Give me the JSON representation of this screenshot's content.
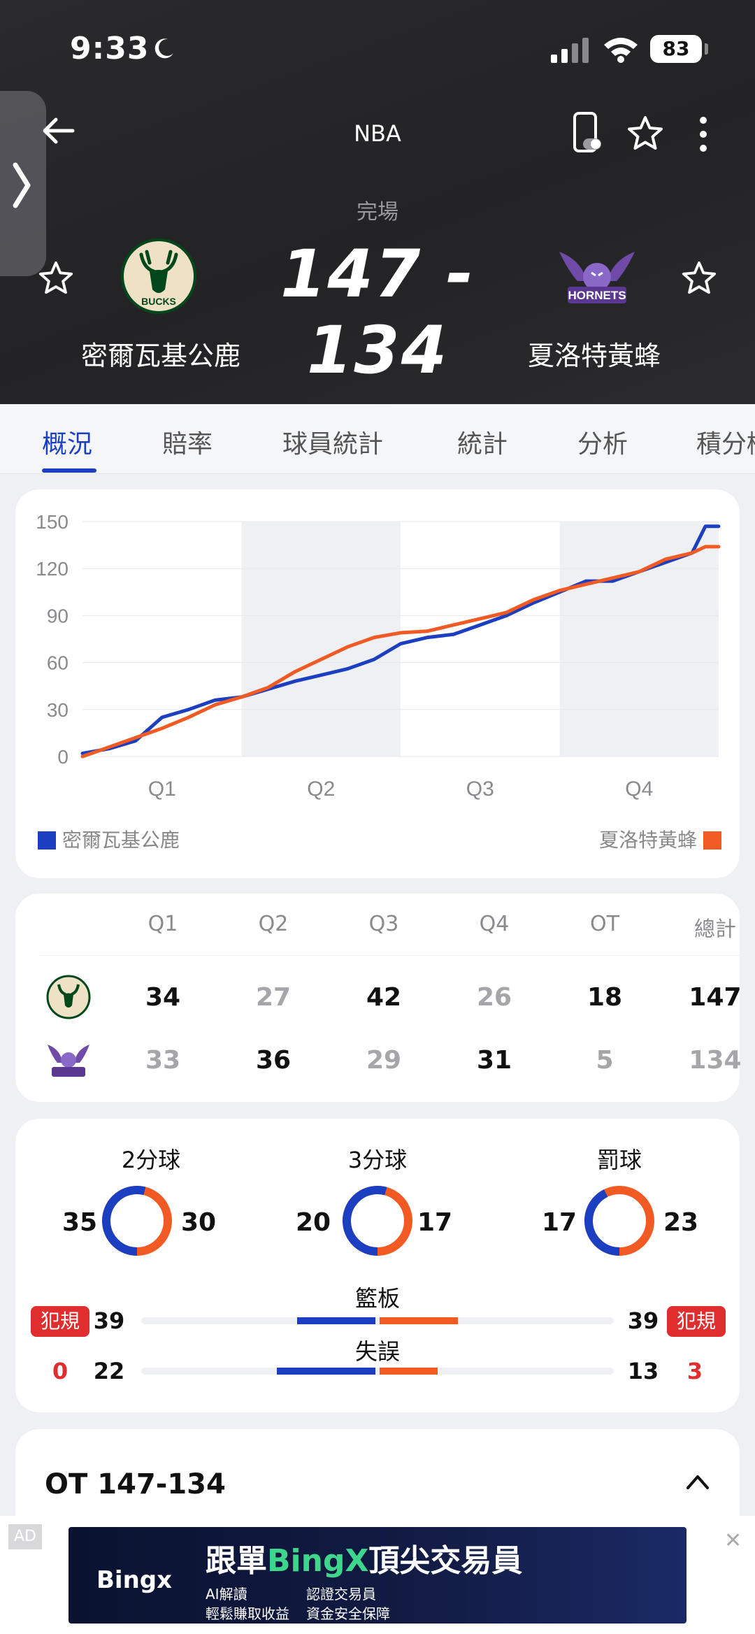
{
  "status_bar": {
    "time": "9:33",
    "battery": "83"
  },
  "header": {
    "league": "NBA",
    "game_status": "完場",
    "score": "147 - 134",
    "home_team": "密爾瓦基公鹿",
    "away_team": "夏洛特黃蜂",
    "home_logo_text": "BUCKS",
    "away_logo_text": "HORNETS"
  },
  "tabs": [
    "概況",
    "賠率",
    "球員統計",
    "統計",
    "分析",
    "積分榜"
  ],
  "chart_data": {
    "type": "line",
    "title": "",
    "xlabel": "",
    "ylabel": "",
    "categories": [
      "Q1",
      "Q2",
      "Q3",
      "Q4"
    ],
    "y_ticks": [
      "150",
      "120",
      "90",
      "60",
      "30",
      "0"
    ],
    "ylim": [
      0,
      150
    ],
    "xlim": [
      0,
      48
    ],
    "grid": true,
    "legend_placement": "bottom",
    "colors": {
      "home": "#1b3fc0",
      "away": "#f15a22"
    },
    "series": [
      {
        "name": "密爾瓦基公鹿",
        "color": "#1b3fc0",
        "x": [
          0,
          2,
          4,
          6,
          8,
          10,
          12,
          14,
          16,
          18,
          20,
          22,
          24,
          26,
          28,
          30,
          32,
          34,
          36,
          38,
          40,
          42,
          44,
          46,
          47,
          48
        ],
        "y": [
          2,
          5,
          10,
          25,
          30,
          36,
          38,
          43,
          48,
          52,
          56,
          62,
          72,
          76,
          78,
          84,
          90,
          98,
          105,
          112,
          112,
          118,
          124,
          130,
          147,
          147
        ]
      },
      {
        "name": "夏洛特黃蜂",
        "color": "#f15a22",
        "x": [
          0,
          2,
          4,
          6,
          8,
          10,
          12,
          14,
          16,
          18,
          20,
          22,
          24,
          26,
          28,
          30,
          32,
          34,
          36,
          38,
          40,
          42,
          44,
          46,
          47,
          48
        ],
        "y": [
          0,
          6,
          12,
          18,
          25,
          33,
          38,
          44,
          54,
          62,
          70,
          76,
          79,
          80,
          84,
          88,
          92,
          100,
          106,
          110,
          114,
          118,
          126,
          130,
          134,
          134
        ]
      }
    ]
  },
  "legend": {
    "home": "密爾瓦基公鹿",
    "away": "夏洛特黃蜂"
  },
  "quarters": {
    "headers": [
      "Q1",
      "Q2",
      "Q3",
      "Q4",
      "OT",
      "總計"
    ],
    "home": [
      "34",
      "27",
      "42",
      "26",
      "18",
      "147"
    ],
    "away": [
      "33",
      "36",
      "29",
      "31",
      "5",
      "134"
    ]
  },
  "shooting": [
    {
      "label": "2分球",
      "home": "35",
      "away": "30"
    },
    {
      "label": "3分球",
      "home": "20",
      "away": "17"
    },
    {
      "label": "罰球",
      "home": "17",
      "away": "23"
    }
  ],
  "fouls": {
    "label": "犯規",
    "home_count": "0",
    "away_count": "3"
  },
  "rebounds": {
    "label": "籃板",
    "home": "39",
    "away": "39",
    "home_frac": 0.5,
    "away_frac": 0.5
  },
  "turnovers": {
    "label": "失誤",
    "home": "22",
    "away": "13",
    "home_frac": 0.63,
    "away_frac": 0.37
  },
  "ot_section": {
    "title": "OT 147-134"
  },
  "ad": {
    "tag": "AD",
    "close": "✕",
    "brand": "Bingx",
    "headline_pre": "跟單",
    "headline_hl": "BingX",
    "headline_post": "頂尖交易員",
    "points": [
      "AI解讀",
      "認證交易員",
      "輕鬆賺取收益",
      "資金安全保障"
    ]
  }
}
